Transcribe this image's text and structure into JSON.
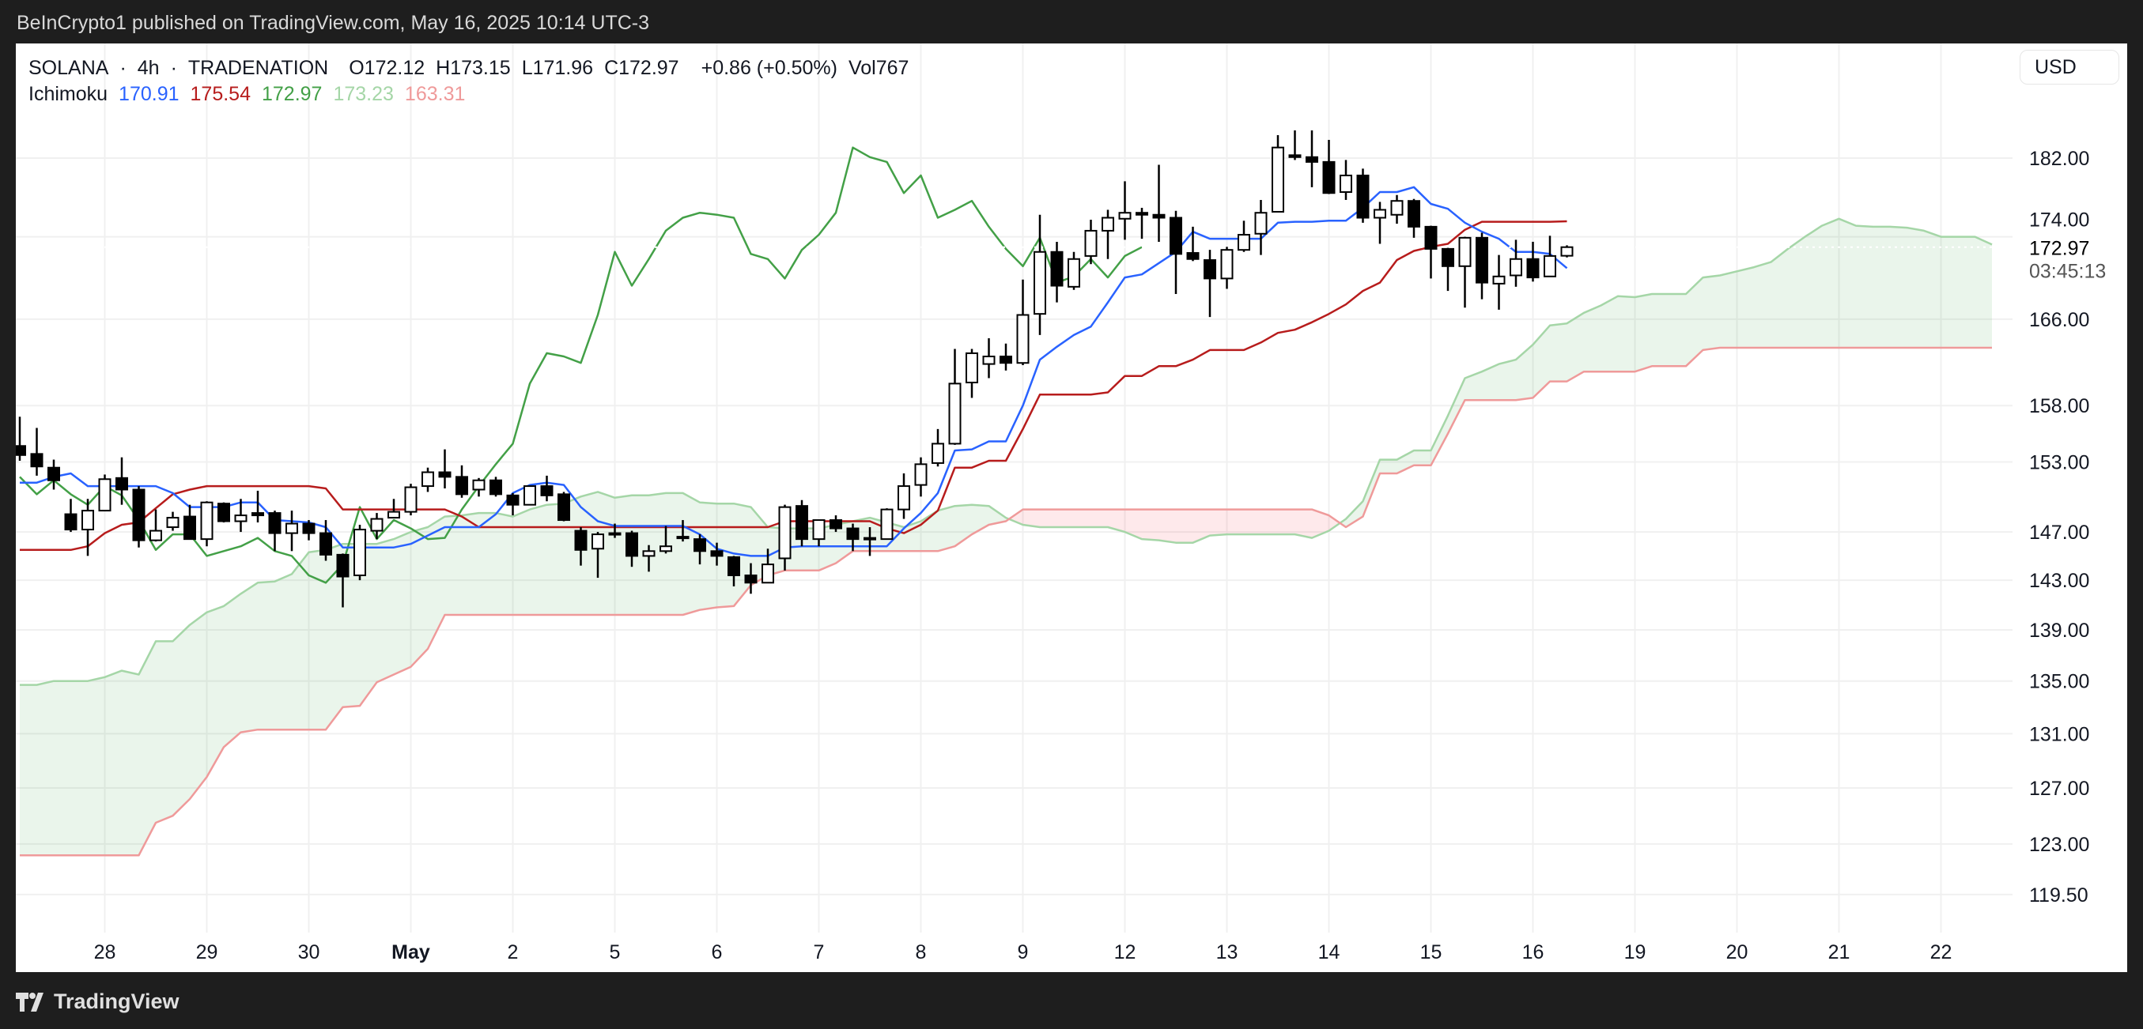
{
  "publish_line": "BeInCrypto1 published on TradingView.com, May 16, 2025 10:14 UTC-3",
  "legend": {
    "symbol": "SOLANA",
    "sep1": "·",
    "interval": "4h",
    "sep2": "·",
    "exchange": "TRADENATION",
    "ohlc": [
      {
        "k": "O",
        "v": "172.12"
      },
      {
        "k": "H",
        "v": "173.15"
      },
      {
        "k": "L",
        "v": "171.96"
      },
      {
        "k": "C",
        "v": "172.97"
      }
    ],
    "change": "+0.86 (+0.50%)",
    "volume_label": "Vol",
    "volume": "767"
  },
  "indicator": {
    "name": "Ichimoku",
    "values": [
      {
        "label": "170.91",
        "color": "#2962ff"
      },
      {
        "label": "175.54",
        "color": "#b71c1c"
      },
      {
        "label": "172.97",
        "color": "#43a047"
      },
      {
        "label": "173.23",
        "color": "#a5d6a7"
      },
      {
        "label": "163.31",
        "color": "#ef9a9a"
      }
    ]
  },
  "price_axis": {
    "currency": "USD",
    "scale": "log",
    "ticks": [
      "182.00",
      "174.00",
      "166.00",
      "158.00",
      "153.00",
      "147.00",
      "143.00",
      "139.00",
      "135.00",
      "131.00",
      "127.00",
      "123.00",
      "119.50"
    ],
    "last_price": "172.97",
    "countdown": "03:45:13"
  },
  "time_axis": {
    "ticks": [
      {
        "label": "28",
        "t": "Apr 28 00:00"
      },
      {
        "label": "29",
        "t": "Apr 29 00:00"
      },
      {
        "label": "30",
        "t": "Apr 30 00:00"
      },
      {
        "label": "May",
        "t": "May 1 00:00",
        "bold": true
      },
      {
        "label": "2",
        "t": "May 2 00:00"
      },
      {
        "label": "5",
        "t": "May 5 00:00"
      },
      {
        "label": "6",
        "t": "May 6 00:00"
      },
      {
        "label": "7",
        "t": "May 7 00:00"
      },
      {
        "label": "8",
        "t": "May 8 00:00"
      },
      {
        "label": "9",
        "t": "May 9 00:00"
      },
      {
        "label": "12",
        "t": "May 12 00:00"
      },
      {
        "label": "13",
        "t": "May 13 00:00"
      },
      {
        "label": "14",
        "t": "May 14 00:00"
      },
      {
        "label": "15",
        "t": "May 15 00:00"
      },
      {
        "label": "16",
        "t": "May 16 00:00"
      },
      {
        "label": "19",
        "t": "May 19 00:00"
      },
      {
        "label": "20",
        "t": "May 20 00:00"
      },
      {
        "label": "21",
        "t": "May 21 00:00"
      },
      {
        "label": "22",
        "t": "May 22 00:00"
      }
    ]
  },
  "colors": {
    "tenkan": "#2962ff",
    "kijun": "#b71c1c",
    "chikou": "#43a047",
    "senkou_a": "#a5d6a7",
    "senkou_b": "#ef9a9a",
    "cloud_up": "rgba(67,160,71,0.11)",
    "cloud_down": "rgba(242,54,69,0.11)",
    "candle_up": "#ffffff",
    "candle_down": "#000000",
    "grid": "#f0f0f0"
  },
  "branding": "TradingView",
  "chart_data": {
    "type": "candlestick",
    "title": "SOLANA · 4h · TRADENATION",
    "indicator": "Ichimoku",
    "y_scale": "log",
    "ylim": [
      118,
      188
    ],
    "grid": true,
    "chikou_shift_bars": 25,
    "x": [
      "Apr 27 04:00",
      "Apr 27 08:00",
      "Apr 27 12:00",
      "Apr 27 16:00",
      "Apr 27 20:00",
      "Apr 28 00:00",
      "Apr 28 04:00",
      "Apr 28 08:00",
      "Apr 28 12:00",
      "Apr 28 16:00",
      "Apr 28 20:00",
      "Apr 29 00:00",
      "Apr 29 04:00",
      "Apr 29 08:00",
      "Apr 29 12:00",
      "Apr 29 16:00",
      "Apr 29 20:00",
      "Apr 30 00:00",
      "Apr 30 04:00",
      "Apr 30 08:00",
      "Apr 30 12:00",
      "Apr 30 16:00",
      "Apr 30 20:00",
      "May 1 00:00",
      "May 1 04:00",
      "May 1 08:00",
      "May 1 12:00",
      "May 1 16:00",
      "May 1 20:00",
      "May 2 00:00",
      "May 2 04:00",
      "May 2 08:00",
      "May 2 12:00",
      "May 2 16:00",
      "May 2 20:00",
      "May 5 00:00",
      "May 5 04:00",
      "May 5 08:00",
      "May 5 12:00",
      "May 5 16:00",
      "May 5 20:00",
      "May 6 00:00",
      "May 6 04:00",
      "May 6 08:00",
      "May 6 12:00",
      "May 6 16:00",
      "May 6 20:00",
      "May 7 00:00",
      "May 7 04:00",
      "May 7 08:00",
      "May 7 12:00",
      "May 7 16:00",
      "May 7 20:00",
      "May 8 00:00",
      "May 8 04:00",
      "May 8 08:00",
      "May 8 12:00",
      "May 8 16:00",
      "May 8 20:00",
      "May 9 00:00",
      "May 9 04:00",
      "May 9 08:00",
      "May 9 12:00",
      "May 9 16:00",
      "May 9 20:00",
      "May 12 00:00",
      "May 12 04:00",
      "May 12 08:00",
      "May 12 12:00",
      "May 12 16:00",
      "May 12 20:00",
      "May 13 00:00",
      "May 13 04:00",
      "May 13 08:00",
      "May 13 12:00",
      "May 13 16:00",
      "May 13 20:00",
      "May 14 00:00",
      "May 14 04:00",
      "May 14 08:00",
      "May 14 12:00",
      "May 14 16:00",
      "May 14 20:00",
      "May 15 00:00",
      "May 15 04:00",
      "May 15 08:00",
      "May 15 12:00",
      "May 15 16:00",
      "May 15 20:00",
      "May 16 00:00",
      "May 16 04:00",
      "May 16 08:00",
      "May 16 12:00",
      "May 16 16:00",
      "May 16 20:00",
      "May 19 00:00",
      "May 19 04:00",
      "May 19 08:00",
      "May 19 12:00",
      "May 19 16:00",
      "May 19 20:00",
      "May 20 00:00",
      "May 20 04:00",
      "May 20 08:00",
      "May 20 12:00",
      "May 20 16:00",
      "May 20 20:00",
      "May 21 00:00",
      "May 21 04:00",
      "May 21 08:00",
      "May 21 12:00",
      "May 21 16:00",
      "May 21 20:00",
      "May 22 00:00",
      "May 22 04:00",
      "May 22 08:00",
      "May 22 12:00"
    ],
    "ohlc": [
      [
        154.4,
        157.0,
        153.1,
        153.6
      ],
      [
        153.7,
        156.0,
        151.8,
        152.6
      ],
      [
        152.5,
        153.2,
        150.6,
        151.4
      ],
      [
        148.5,
        149.8,
        147.0,
        147.2
      ],
      [
        147.2,
        149.8,
        145.0,
        148.8
      ],
      [
        148.8,
        151.9,
        148.8,
        151.5
      ],
      [
        151.6,
        153.4,
        149.3,
        150.6
      ],
      [
        150.6,
        150.9,
        145.7,
        146.3
      ],
      [
        146.3,
        148.9,
        146.2,
        147.1
      ],
      [
        147.4,
        148.7,
        147.1,
        148.2
      ],
      [
        148.3,
        149.3,
        146.4,
        146.4
      ],
      [
        146.4,
        149.6,
        145.8,
        149.5
      ],
      [
        149.4,
        149.5,
        147.8,
        147.9
      ],
      [
        147.9,
        149.8,
        147.0,
        148.4
      ],
      [
        148.6,
        150.5,
        147.8,
        148.4
      ],
      [
        148.6,
        148.8,
        145.4,
        146.9
      ],
      [
        146.9,
        148.8,
        145.4,
        147.7
      ],
      [
        147.7,
        148.0,
        146.3,
        146.9
      ],
      [
        146.9,
        148.0,
        144.6,
        145.1
      ],
      [
        145.1,
        145.2,
        140.8,
        143.3
      ],
      [
        143.4,
        147.6,
        143.0,
        147.2
      ],
      [
        147.1,
        148.6,
        146.4,
        148.1
      ],
      [
        148.2,
        149.8,
        148.2,
        148.7
      ],
      [
        148.7,
        151.1,
        148.4,
        150.8
      ],
      [
        150.9,
        152.5,
        150.4,
        152.1
      ],
      [
        152.1,
        154.1,
        150.7,
        151.7
      ],
      [
        151.7,
        152.7,
        149.9,
        150.2
      ],
      [
        150.6,
        151.6,
        150.0,
        151.4
      ],
      [
        151.4,
        151.7,
        150.0,
        150.2
      ],
      [
        150.1,
        150.3,
        148.4,
        149.3
      ],
      [
        149.3,
        150.9,
        149.3,
        150.9
      ],
      [
        150.9,
        151.8,
        149.6,
        150.1
      ],
      [
        150.2,
        150.4,
        147.9,
        148.0
      ],
      [
        147.1,
        147.4,
        144.2,
        145.5
      ],
      [
        145.6,
        147.0,
        143.2,
        146.8
      ],
      [
        146.9,
        147.7,
        146.5,
        146.8
      ],
      [
        146.9,
        147.1,
        144.1,
        145.0
      ],
      [
        145.0,
        145.9,
        143.7,
        145.4
      ],
      [
        145.4,
        147.5,
        145.2,
        145.8
      ],
      [
        146.6,
        148.0,
        146.2,
        146.5
      ],
      [
        146.4,
        146.8,
        144.3,
        145.4
      ],
      [
        145.4,
        146.1,
        144.2,
        145.0
      ],
      [
        144.9,
        145.0,
        142.5,
        143.4
      ],
      [
        143.4,
        144.4,
        141.9,
        142.8
      ],
      [
        142.8,
        145.6,
        142.8,
        144.3
      ],
      [
        144.8,
        149.3,
        143.8,
        149.1
      ],
      [
        149.2,
        149.7,
        145.8,
        146.4
      ],
      [
        146.4,
        148.0,
        145.8,
        148.0
      ],
      [
        148.0,
        148.4,
        147.0,
        147.3
      ],
      [
        147.3,
        147.7,
        145.4,
        146.4
      ],
      [
        146.4,
        147.4,
        145.0,
        146.5
      ],
      [
        146.4,
        149.0,
        146.4,
        148.9
      ],
      [
        148.9,
        152.0,
        148.1,
        150.9
      ],
      [
        151.0,
        153.4,
        150.0,
        152.8
      ],
      [
        152.9,
        155.9,
        152.6,
        154.6
      ],
      [
        154.6,
        163.2,
        154.5,
        160.0
      ],
      [
        160.1,
        163.2,
        158.7,
        162.8
      ],
      [
        161.8,
        164.2,
        160.5,
        162.5
      ],
      [
        162.5,
        163.7,
        161.2,
        161.9
      ],
      [
        161.9,
        169.8,
        161.7,
        166.4
      ],
      [
        166.5,
        176.2,
        164.5,
        172.5
      ],
      [
        172.5,
        173.5,
        167.6,
        169.2
      ],
      [
        169.1,
        172.5,
        168.8,
        171.8
      ],
      [
        172.1,
        175.7,
        171.3,
        174.6
      ],
      [
        174.6,
        176.7,
        171.8,
        175.9
      ],
      [
        175.8,
        179.6,
        173.7,
        176.4
      ],
      [
        176.4,
        176.9,
        173.8,
        176.2
      ],
      [
        176.2,
        181.3,
        173.5,
        175.9
      ],
      [
        175.9,
        176.6,
        168.4,
        172.3
      ],
      [
        172.4,
        175.0,
        171.6,
        171.8
      ],
      [
        171.7,
        172.7,
        166.2,
        169.9
      ],
      [
        169.9,
        173.0,
        168.9,
        172.7
      ],
      [
        172.7,
        175.6,
        172.5,
        174.2
      ],
      [
        174.3,
        177.7,
        172.2,
        176.4
      ],
      [
        176.5,
        184.4,
        176.5,
        183.1
      ],
      [
        182.3,
        184.9,
        181.8,
        182.1
      ],
      [
        182.1,
        184.9,
        179.0,
        181.6
      ],
      [
        181.6,
        183.9,
        178.3,
        178.4
      ],
      [
        178.5,
        181.8,
        177.7,
        180.2
      ],
      [
        180.2,
        180.9,
        175.4,
        175.9
      ],
      [
        175.9,
        177.5,
        173.3,
        176.7
      ],
      [
        176.2,
        178.2,
        175.3,
        177.6
      ],
      [
        177.6,
        177.8,
        173.9,
        175.0
      ],
      [
        175.0,
        175.1,
        169.9,
        172.8
      ],
      [
        172.8,
        172.9,
        168.7,
        171.1
      ],
      [
        171.1,
        174.0,
        167.1,
        173.9
      ],
      [
        173.9,
        174.4,
        167.9,
        169.5
      ],
      [
        169.4,
        172.2,
        166.9,
        170.1
      ],
      [
        170.2,
        173.7,
        169.1,
        171.8
      ],
      [
        171.8,
        173.5,
        169.6,
        170.0
      ],
      [
        170.1,
        174.1,
        170.1,
        172.1
      ],
      [
        172.12,
        173.15,
        171.96,
        172.97
      ]
    ],
    "tenkan": [
      151.2,
      151.2,
      151.7,
      152.0,
      150.9,
      150.9,
      150.9,
      150.9,
      150.9,
      150.3,
      149.1,
      149.1,
      149.1,
      149.5,
      149.5,
      148.0,
      147.9,
      147.8,
      147.4,
      145.7,
      145.7,
      145.7,
      145.7,
      146.0,
      146.7,
      147.4,
      147.4,
      147.4,
      148.5,
      150.3,
      151.0,
      151.2,
      151.0,
      149.1,
      147.9,
      147.5,
      147.5,
      147.5,
      147.5,
      147.5,
      146.8,
      145.6,
      145.2,
      145.0,
      145.0,
      145.7,
      145.8,
      145.8,
      145.8,
      145.8,
      145.8,
      145.8,
      147.3,
      148.6,
      150.3,
      154.0,
      154.1,
      154.8,
      154.8,
      158.0,
      162.2,
      163.4,
      164.5,
      165.3,
      167.6,
      170.0,
      170.3,
      171.4,
      172.5,
      174.5,
      173.8,
      173.8,
      173.8,
      173.8,
      175.4,
      175.5,
      175.5,
      175.6,
      175.6,
      176.9,
      178.5,
      178.5,
      179.0,
      177.3,
      176.8,
      175.4,
      174.5,
      173.8,
      172.5,
      172.5,
      172.3,
      170.91
    ],
    "kijun": [
      145.5,
      145.5,
      145.5,
      145.5,
      145.8,
      146.9,
      147.6,
      147.8,
      149.0,
      150.2,
      150.6,
      150.9,
      150.9,
      150.9,
      150.9,
      150.9,
      150.9,
      150.9,
      150.7,
      148.9,
      148.9,
      148.9,
      148.9,
      148.9,
      148.9,
      148.9,
      148.3,
      147.4,
      147.4,
      147.4,
      147.4,
      147.4,
      147.4,
      147.4,
      147.4,
      147.4,
      147.4,
      147.4,
      147.4,
      147.4,
      147.4,
      147.4,
      147.4,
      147.4,
      147.4,
      147.9,
      147.9,
      147.9,
      147.9,
      147.9,
      147.9,
      147.3,
      146.9,
      147.6,
      148.8,
      152.5,
      152.5,
      153.1,
      153.1,
      155.9,
      159.0,
      159.0,
      159.0,
      159.0,
      159.2,
      160.7,
      160.7,
      161.6,
      161.6,
      162.2,
      163.1,
      163.1,
      163.1,
      163.8,
      164.7,
      165.0,
      165.7,
      166.5,
      167.4,
      168.7,
      169.5,
      171.7,
      172.6,
      173.0,
      173.3,
      174.7,
      175.5,
      175.5,
      175.5,
      175.5,
      175.5,
      175.54
    ],
    "senkou_a": [
      134.7,
      134.7,
      135.0,
      135.0,
      135.0,
      135.3,
      135.8,
      135.5,
      138.1,
      138.1,
      139.4,
      140.4,
      140.9,
      141.9,
      142.8,
      142.9,
      143.5,
      145.3,
      145.5,
      146.0,
      146.0,
      146.0,
      146.4,
      147.0,
      147.4,
      148.3,
      148.4,
      148.6,
      148.6,
      148.3,
      148.9,
      149.3,
      149.4,
      150.0,
      150.4,
      149.9,
      150.1,
      150.1,
      150.3,
      150.3,
      149.5,
      149.4,
      149.4,
      149.1,
      147.4,
      147.3,
      147.3,
      147.3,
      147.6,
      147.9,
      148.2,
      147.8,
      147.4,
      147.9,
      148.8,
      149.2,
      149.3,
      149.2,
      148.2,
      147.6,
      147.4,
      147.4,
      147.4,
      147.4,
      147.4,
      147.0,
      146.4,
      146.3,
      146.1,
      146.1,
      146.7,
      146.8,
      146.8,
      146.8,
      146.8,
      146.8,
      146.5,
      147.1,
      148.1,
      149.6,
      153.2,
      153.2,
      154.0,
      154.0,
      157.1,
      160.5,
      161.1,
      161.8,
      162.2,
      163.6,
      165.4,
      165.6,
      166.6,
      167.3,
      168.2,
      168.1,
      168.4,
      168.4,
      168.4,
      170.0,
      170.2,
      170.6,
      171.0,
      171.5,
      172.8,
      174.0,
      175.1,
      175.8,
      175.1,
      175.0,
      175.0,
      174.9,
      174.6,
      174.0,
      174.0,
      174.0,
      173.23
    ],
    "senkou_b": [
      122.2,
      122.2,
      122.2,
      122.2,
      122.2,
      122.2,
      122.2,
      122.2,
      124.5,
      125.0,
      126.2,
      127.8,
      130.0,
      131.1,
      131.3,
      131.3,
      131.3,
      131.3,
      131.3,
      133.0,
      133.1,
      134.9,
      135.5,
      136.1,
      137.5,
      140.2,
      140.2,
      140.2,
      140.2,
      140.2,
      140.2,
      140.2,
      140.2,
      140.2,
      140.2,
      140.2,
      140.2,
      140.2,
      140.2,
      140.2,
      140.6,
      140.8,
      140.9,
      142.6,
      143.4,
      143.8,
      143.8,
      143.8,
      144.4,
      145.4,
      145.4,
      145.4,
      145.4,
      145.4,
      145.4,
      145.8,
      146.8,
      147.6,
      147.9,
      148.9,
      148.9,
      148.9,
      148.9,
      148.9,
      148.9,
      148.9,
      148.9,
      148.9,
      148.9,
      148.9,
      148.9,
      148.9,
      148.9,
      148.9,
      148.9,
      148.9,
      148.9,
      148.4,
      147.4,
      148.3,
      152.0,
      152.0,
      152.7,
      152.7,
      155.5,
      158.5,
      158.5,
      158.5,
      158.5,
      158.7,
      160.2,
      160.2,
      161.1,
      161.1,
      161.1,
      161.1,
      161.6,
      161.6,
      161.6,
      163.1,
      163.31,
      163.31,
      163.31,
      163.31,
      163.31,
      163.31,
      163.31,
      163.31,
      163.31,
      163.31,
      163.31,
      163.31,
      163.31,
      163.31,
      163.31,
      163.31,
      163.31
    ]
  }
}
